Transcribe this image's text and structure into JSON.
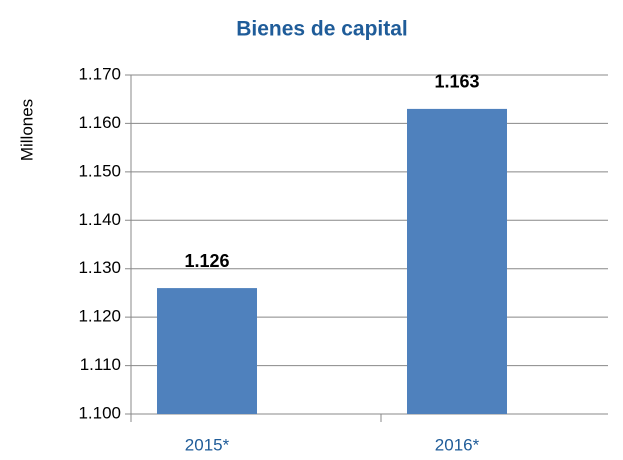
{
  "chart_data": {
    "type": "bar",
    "title": "Bienes de capital",
    "y_label": "Millones",
    "categories": [
      "2015*",
      "2016*"
    ],
    "values": [
      1126,
      1163
    ],
    "value_labels": [
      "1.126",
      "1.163"
    ],
    "color": "#4f81bd",
    "ylim": [
      1100,
      1170
    ],
    "yticks": [
      {
        "value": 1100,
        "label": "1.100"
      },
      {
        "value": 1110,
        "label": "1.110"
      },
      {
        "value": 1120,
        "label": "1.120"
      },
      {
        "value": 1130,
        "label": "1.130"
      },
      {
        "value": 1140,
        "label": "1.140"
      },
      {
        "value": 1150,
        "label": "1.150"
      },
      {
        "value": 1160,
        "label": "1.160"
      },
      {
        "value": 1170,
        "label": "1.170"
      }
    ],
    "grid": true
  }
}
